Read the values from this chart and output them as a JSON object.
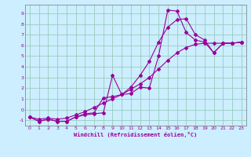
{
  "xlabel": "Windchill (Refroidissement éolien,°C)",
  "bg_color": "#cceeff",
  "line_color": "#990099",
  "grid_color": "#99ccbb",
  "xlim": [
    -0.5,
    23.5
  ],
  "ylim": [
    -1.5,
    9.8
  ],
  "yticks": [
    -1,
    0,
    1,
    2,
    3,
    4,
    5,
    6,
    7,
    8,
    9
  ],
  "xticks": [
    0,
    1,
    2,
    3,
    4,
    5,
    6,
    7,
    8,
    9,
    10,
    11,
    12,
    13,
    14,
    15,
    16,
    17,
    18,
    19,
    20,
    21,
    22,
    23
  ],
  "line1_x": [
    0,
    1,
    2,
    3,
    4,
    5,
    6,
    7,
    8,
    9,
    10,
    11,
    12,
    13,
    14,
    15,
    16,
    17,
    18,
    19,
    20,
    21,
    22,
    23
  ],
  "line1_y": [
    -0.7,
    -1.1,
    -0.9,
    -1.1,
    -1.1,
    -0.7,
    -0.5,
    -0.4,
    -0.3,
    3.2,
    1.4,
    1.5,
    2.1,
    2.0,
    5.0,
    9.3,
    9.2,
    7.2,
    6.5,
    6.3,
    5.3,
    6.2,
    6.2,
    6.3
  ],
  "line2_x": [
    0,
    1,
    2,
    3,
    4,
    5,
    6,
    7,
    8,
    9,
    10,
    11,
    12,
    13,
    14,
    15,
    16,
    17,
    18,
    19,
    20,
    21,
    22,
    23
  ],
  "line2_y": [
    -0.7,
    -1.1,
    -0.9,
    -1.1,
    -1.1,
    -0.7,
    -0.4,
    -0.3,
    1.1,
    1.2,
    1.4,
    2.1,
    3.2,
    4.5,
    6.3,
    7.7,
    8.4,
    8.5,
    7.0,
    6.5,
    5.3,
    6.2,
    6.2,
    6.3
  ],
  "line3_x": [
    0,
    1,
    2,
    3,
    4,
    5,
    6,
    7,
    8,
    9,
    10,
    11,
    12,
    13,
    14,
    15,
    16,
    17,
    18,
    19,
    20,
    21,
    22,
    23
  ],
  "line3_y": [
    -0.7,
    -0.9,
    -0.8,
    -0.9,
    -0.8,
    -0.5,
    -0.2,
    0.2,
    0.6,
    1.0,
    1.4,
    1.9,
    2.4,
    3.0,
    3.8,
    4.6,
    5.3,
    5.8,
    6.1,
    6.2,
    6.2,
    6.2,
    6.2,
    6.3
  ]
}
